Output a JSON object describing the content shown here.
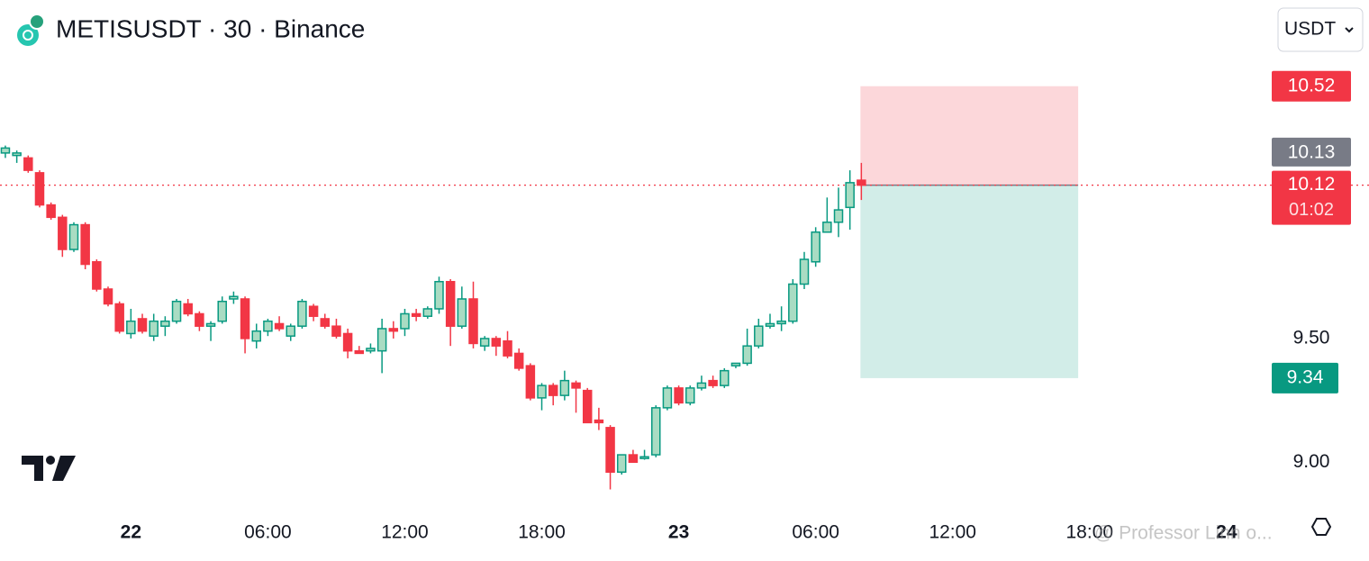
{
  "chart_data": {
    "type": "candlestick",
    "title": "METISUSDT · 30 · Binance",
    "currency": "USDT",
    "up_color": "#089981",
    "up_fill": "#a9dcc3",
    "down_color": "#f23645",
    "open": [
      10.25,
      10.24,
      10.23,
      10.17,
      10.04,
      9.99,
      9.86,
      9.96,
      9.81,
      9.7,
      9.64,
      9.52,
      9.58,
      9.51,
      9.55,
      9.57,
      9.64,
      9.6,
      9.55,
      9.57,
      9.66,
      9.66,
      9.49,
      9.53,
      9.56,
      9.51,
      9.55,
      9.63,
      9.58,
      9.55,
      9.52,
      9.45,
      9.45,
      9.45,
      9.54,
      9.54,
      9.6,
      9.59,
      9.62,
      9.73,
      9.55,
      9.66,
      9.47,
      9.5,
      9.49,
      9.44,
      9.39,
      9.26,
      9.31,
      9.27,
      9.32,
      9.29,
      9.17,
      9.14,
      8.96,
      9.03,
      9.015,
      9.03,
      9.22,
      9.3,
      9.24,
      9.3,
      9.33,
      9.31,
      9.39,
      9.4,
      9.47,
      9.55,
      9.56,
      9.57,
      9.72,
      9.81,
      9.93,
      9.97,
      10.03,
      10.14
    ],
    "high": [
      10.28,
      10.26,
      10.24,
      10.18,
      10.05,
      10.0,
      9.97,
      9.97,
      9.82,
      9.71,
      9.65,
      9.62,
      9.6,
      9.6,
      9.59,
      9.66,
      9.66,
      9.61,
      9.57,
      9.67,
      9.69,
      9.67,
      9.56,
      9.58,
      9.59,
      9.56,
      9.66,
      9.64,
      9.6,
      9.58,
      9.54,
      9.47,
      9.48,
      9.58,
      9.57,
      9.62,
      9.62,
      9.63,
      9.75,
      9.74,
      9.71,
      9.73,
      9.51,
      9.51,
      9.53,
      9.46,
      9.4,
      9.32,
      9.32,
      9.37,
      9.33,
      9.3,
      9.22,
      9.15,
      9.03,
      9.05,
      9.05,
      9.23,
      9.31,
      9.31,
      9.31,
      9.35,
      9.35,
      9.38,
      9.4,
      9.54,
      9.58,
      9.6,
      9.63,
      9.74,
      9.85,
      9.95,
      10.07,
      10.11,
      10.18,
      10.21
    ],
    "low": [
      10.23,
      10.21,
      10.17,
      10.03,
      9.98,
      9.83,
      9.85,
      9.78,
      9.69,
      9.63,
      9.52,
      9.5,
      9.52,
      9.49,
      9.51,
      9.56,
      9.59,
      9.53,
      9.49,
      9.56,
      9.64,
      9.44,
      9.46,
      9.51,
      9.53,
      9.49,
      9.54,
      9.57,
      9.54,
      9.5,
      9.42,
      9.44,
      9.44,
      9.36,
      9.5,
      9.51,
      9.57,
      9.58,
      9.6,
      9.47,
      9.54,
      9.46,
      9.45,
      9.43,
      9.42,
      9.37,
      9.25,
      9.21,
      9.23,
      9.25,
      9.2,
      9.16,
      9.13,
      8.89,
      8.95,
      9.0,
      9.01,
      9.02,
      9.21,
      9.23,
      9.23,
      9.29,
      9.3,
      9.3,
      9.38,
      9.39,
      9.46,
      9.54,
      9.53,
      9.56,
      9.7,
      9.79,
      9.93,
      9.91,
      9.94,
      10.06
    ],
    "close": [
      10.27,
      10.25,
      10.18,
      10.04,
      9.99,
      9.86,
      9.96,
      9.8,
      9.7,
      9.64,
      9.53,
      9.57,
      9.53,
      9.57,
      9.57,
      9.65,
      9.6,
      9.55,
      9.56,
      9.65,
      9.67,
      9.5,
      9.53,
      9.57,
      9.54,
      9.55,
      9.65,
      9.59,
      9.55,
      9.51,
      9.45,
      9.44,
      9.46,
      9.54,
      9.53,
      9.6,
      9.59,
      9.62,
      9.73,
      9.55,
      9.66,
      9.48,
      9.5,
      9.47,
      9.43,
      9.38,
      9.26,
      9.31,
      9.27,
      9.33,
      9.3,
      9.16,
      9.16,
      8.96,
      9.03,
      9.0,
      9.022,
      9.22,
      9.3,
      9.24,
      9.3,
      9.32,
      9.31,
      9.37,
      9.4,
      9.47,
      9.55,
      9.56,
      9.57,
      9.72,
      9.82,
      9.93,
      9.97,
      10.02,
      10.13,
      10.12
    ],
    "xlim": [
      -0.47,
      110.8
    ],
    "xticks": [
      {
        "value": 11,
        "label": "22"
      },
      {
        "value": 23,
        "label": "06:00"
      },
      {
        "value": 35,
        "label": "12:00"
      },
      {
        "value": 47,
        "label": "18:00"
      },
      {
        "value": 59,
        "label": "23"
      },
      {
        "value": 71,
        "label": "06:00"
      },
      {
        "value": 83,
        "label": "12:00"
      },
      {
        "value": 95,
        "label": "18:00"
      },
      {
        "value": 107,
        "label": "24"
      }
    ],
    "ylim": [
      8.83,
      10.65
    ],
    "yticks": [
      {
        "value": 9,
        "label": "9.00"
      },
      {
        "value": 9.5,
        "label": "9.50"
      }
    ],
    "position": {
      "stop": 10.52,
      "stop_label": "10.52",
      "entry": 10.12,
      "entry_label": "10.12",
      "target": 9.34,
      "target_label": "9.34"
    },
    "high_marker": {
      "value": 10.13,
      "label": "10.13"
    },
    "countdown": "01:02",
    "watermark": "@ Professor Linn o..."
  }
}
